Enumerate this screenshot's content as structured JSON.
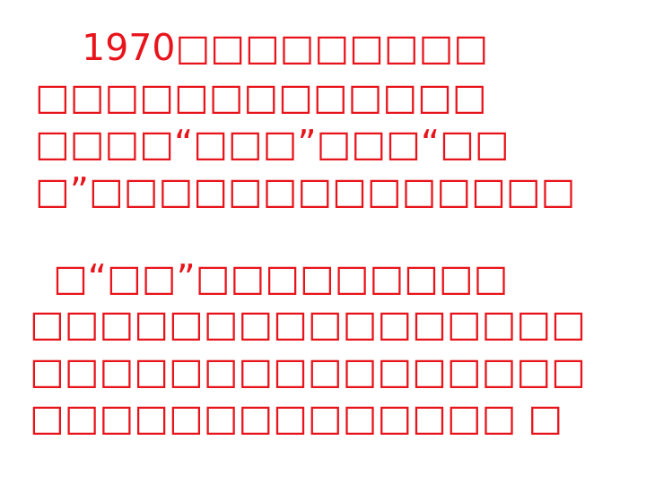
{
  "slide": {
    "text_color": "#e8141b",
    "paragraph_1": {
      "lines": [
        "    1970□□□□□□□□□",
        "□□□□□□□□□□□□□",
        "□□□□“□□□”□□□“□□",
        "□”□□□□□□□□□□□□□□"
      ]
    },
    "paragraph_2": {
      "lines": [
        "  □“□□”□□□□□□□□□",
        "□□□□□□□□□□□□□□□□",
        "□□□□□□□□□□□□□□□□",
        "□□□□□□□□□□□□□□ □"
      ]
    }
  }
}
